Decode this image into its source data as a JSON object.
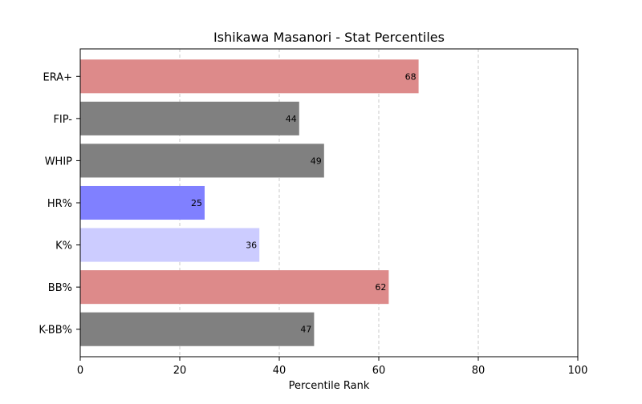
{
  "chart_data": {
    "type": "bar",
    "orientation": "horizontal",
    "title": "Ishikawa Masanori - Stat Percentiles",
    "xlabel": "Percentile Rank",
    "ylabel": "",
    "xlim": [
      0,
      100
    ],
    "xticks": [
      0,
      20,
      40,
      60,
      80,
      100
    ],
    "grid": "x-dashed",
    "categories": [
      "ERA+",
      "FIP-",
      "WHIP",
      "HR%",
      "K%",
      "BB%",
      "K-BB%"
    ],
    "values": [
      68,
      44,
      49,
      25,
      36,
      62,
      47
    ],
    "colors": [
      "#dd8a8a",
      "#808080",
      "#808080",
      "#8080ff",
      "#ccccff",
      "#dd8a8a",
      "#808080"
    ]
  }
}
